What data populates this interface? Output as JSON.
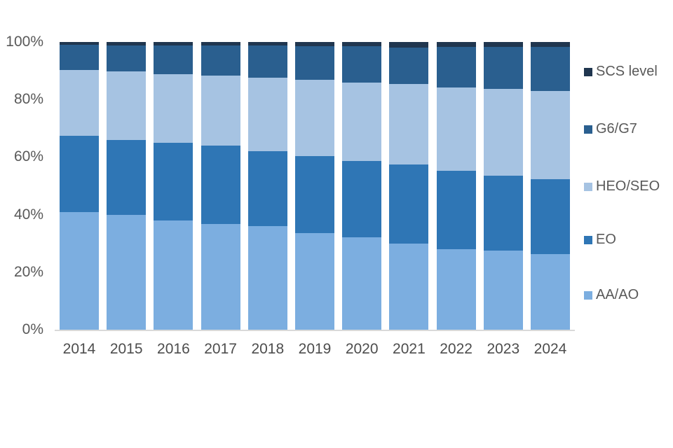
{
  "chart_data": {
    "type": "bar",
    "stacked": true,
    "title": "",
    "xlabel": "",
    "ylabel": "",
    "unit": "percent",
    "ylim": [
      0,
      100
    ],
    "grid": false,
    "legend_position": "right",
    "categories": [
      "2014",
      "2015",
      "2016",
      "2017",
      "2018",
      "2019",
      "2020",
      "2021",
      "2022",
      "2023",
      "2024"
    ],
    "y_ticks": [
      "0%",
      "20%",
      "40%",
      "60%",
      "80%",
      "100%"
    ],
    "series": [
      {
        "name": "AA/AO",
        "color": "#7caee0",
        "values": [
          41.0,
          40.0,
          38.0,
          36.7,
          36.0,
          33.7,
          32.0,
          30.0,
          28.0,
          27.4,
          26.3
        ]
      },
      {
        "name": "EO",
        "color": "#2f76b5",
        "values": [
          26.5,
          26.0,
          27.0,
          27.3,
          26.0,
          26.6,
          26.6,
          27.5,
          27.3,
          26.1,
          26.0
        ]
      },
      {
        "name": "HEO/SEO",
        "color": "#a6c3e2",
        "values": [
          22.8,
          23.8,
          23.8,
          24.4,
          25.7,
          26.5,
          27.2,
          27.8,
          28.9,
          30.2,
          30.7
        ]
      },
      {
        "name": "G6/G7",
        "color": "#2a5f8f",
        "values": [
          8.7,
          9.1,
          10.0,
          10.4,
          11.0,
          11.8,
          12.7,
          12.7,
          14.2,
          14.7,
          15.2
        ]
      },
      {
        "name": "SCS level",
        "color": "#20364f",
        "values": [
          1.0,
          1.1,
          1.2,
          1.2,
          1.3,
          1.4,
          1.5,
          2.0,
          1.6,
          1.6,
          1.8
        ]
      }
    ],
    "legend_order": [
      "SCS level",
      "G6/G7",
      "HEO/SEO",
      "EO",
      "AA/AO"
    ]
  },
  "colors": {
    "background": "#ffffff",
    "axis_line": "#d9d9d9",
    "y_label_text": "#595959",
    "x_label_text": "#4d4d4d",
    "legend_text": "#595959"
  }
}
